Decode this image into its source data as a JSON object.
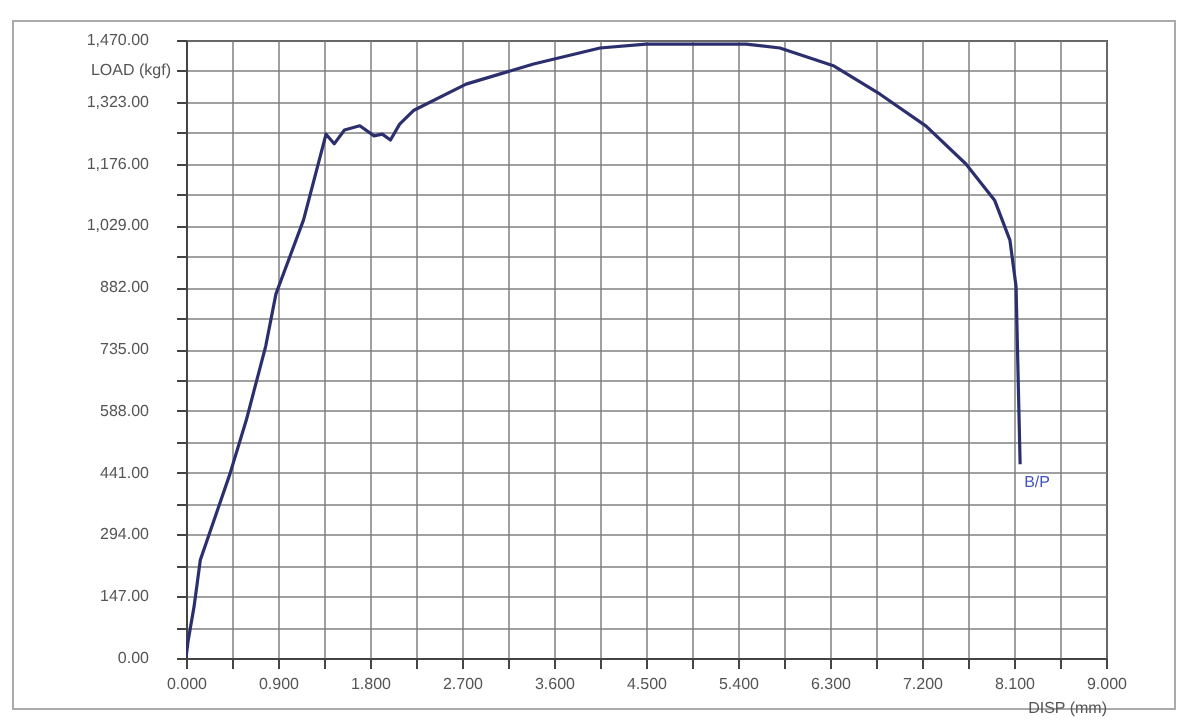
{
  "chart_data": {
    "type": "line",
    "xlabel": "DISP (mm)",
    "ylabel": "LOAD (kgf)",
    "series": [
      {
        "color": "#2b2f6e",
        "x": [
          0,
          0.02,
          0.08,
          0.14,
          0.43,
          0.59,
          0.78,
          0.88,
          1.15,
          1.37,
          1.45,
          1.55,
          1.7,
          1.84,
          1.92,
          2.0,
          2.09,
          2.23,
          2.74,
          3.4,
          4.05,
          4.5,
          5.48,
          5.81,
          6.34,
          6.79,
          7.24,
          7.63,
          7.91,
          8.06,
          8.12,
          8.16
        ],
        "values": [
          0,
          40,
          124,
          233,
          438,
          566,
          742,
          866,
          1042,
          1246,
          1223,
          1256,
          1266,
          1242,
          1246,
          1232,
          1270,
          1303,
          1365,
          1413,
          1451,
          1460,
          1460,
          1451,
          1408,
          1341,
          1265,
          1175,
          1089,
          994,
          884,
          461
        ]
      }
    ],
    "xlim": [
      0,
      9
    ],
    "ylim": [
      0,
      1470
    ],
    "xticks": [
      {
        "value": 0,
        "label": "0.000"
      },
      {
        "value": 0.45,
        "label": null
      },
      {
        "value": 0.9,
        "label": "0.900"
      },
      {
        "value": 1.35,
        "label": null
      },
      {
        "value": 1.8,
        "label": "1.800"
      },
      {
        "value": 2.25,
        "label": null
      },
      {
        "value": 2.7,
        "label": "2.700"
      },
      {
        "value": 3.15,
        "label": null
      },
      {
        "value": 3.6,
        "label": "3.600"
      },
      {
        "value": 4.05,
        "label": null
      },
      {
        "value": 4.5,
        "label": "4.500"
      },
      {
        "value": 4.95,
        "label": null
      },
      {
        "value": 5.4,
        "label": "5.400"
      },
      {
        "value": 5.85,
        "label": null
      },
      {
        "value": 6.3,
        "label": "6.300"
      },
      {
        "value": 6.75,
        "label": null
      },
      {
        "value": 7.2,
        "label": "7.200"
      },
      {
        "value": 7.65,
        "label": null
      },
      {
        "value": 8.1,
        "label": "8.100"
      },
      {
        "value": 8.55,
        "label": null
      },
      {
        "value": 9,
        "label": "9.000"
      }
    ],
    "yticks": [
      {
        "value": 0,
        "label": "0.00"
      },
      {
        "value": 73.5,
        "label": null
      },
      {
        "value": 147,
        "label": "147.00"
      },
      {
        "value": 220.5,
        "label": null
      },
      {
        "value": 294,
        "label": "294.00"
      },
      {
        "value": 367.5,
        "label": null
      },
      {
        "value": 441,
        "label": "441.00"
      },
      {
        "value": 514.5,
        "label": null
      },
      {
        "value": 588,
        "label": "588.00"
      },
      {
        "value": 661.5,
        "label": null
      },
      {
        "value": 735,
        "label": "735.00"
      },
      {
        "value": 808.5,
        "label": null
      },
      {
        "value": 882,
        "label": "882.00"
      },
      {
        "value": 955.5,
        "label": null
      },
      {
        "value": 1029,
        "label": "1,029.00"
      },
      {
        "value": 1102.5,
        "label": null
      },
      {
        "value": 1176,
        "label": "1,176.00"
      },
      {
        "value": 1249.5,
        "label": null
      },
      {
        "value": 1323,
        "label": "1,323.00"
      },
      {
        "value": 1396.5,
        "label": null
      },
      {
        "value": 1470,
        "label": "1,470.00"
      }
    ],
    "grid": true,
    "marker": "none",
    "annotations": [
      {
        "text": "B/P",
        "x": 8.16,
        "y": 441
      }
    ]
  }
}
